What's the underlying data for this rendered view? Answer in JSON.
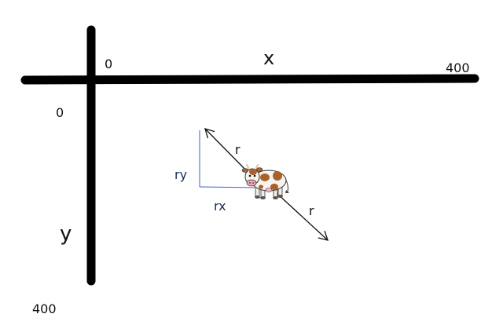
{
  "labels": {
    "x_axis": "x",
    "y_axis": "y",
    "x_origin": "0",
    "x_max": "400",
    "y_origin": "0",
    "y_max": "400",
    "r_upper": "r",
    "r_lower": "r",
    "ry": "ry",
    "rx": "rx"
  },
  "colors": {
    "axis": "#000000",
    "arrow": "#111111",
    "component_lines": "#3b5bcc",
    "text": "#111111"
  },
  "icons": {
    "sprite": "cow-icon"
  }
}
